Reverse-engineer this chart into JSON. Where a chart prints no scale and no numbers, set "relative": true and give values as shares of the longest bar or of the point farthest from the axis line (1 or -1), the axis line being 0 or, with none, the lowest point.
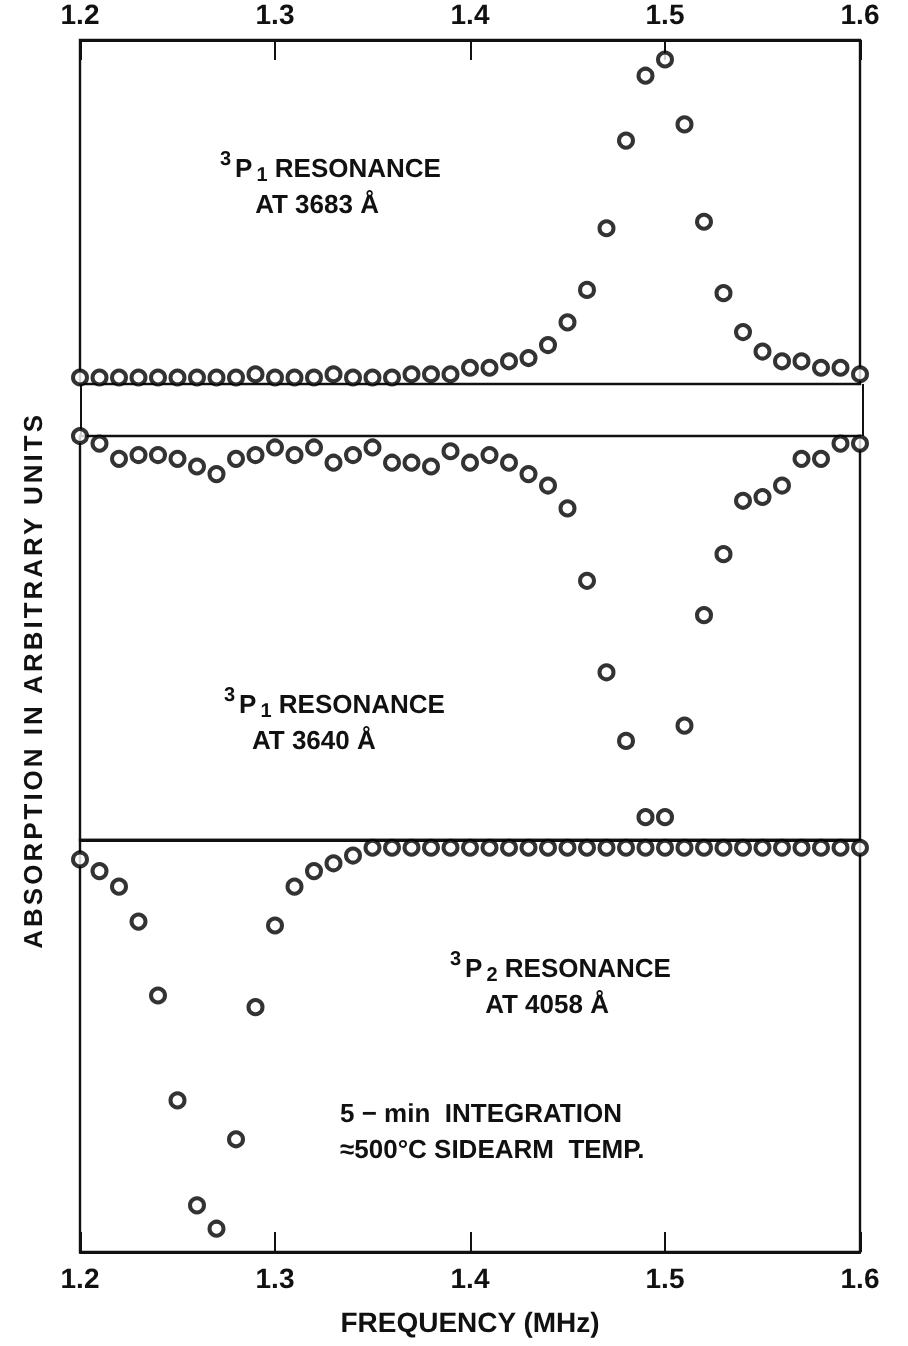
{
  "chart_data": [
    {
      "type": "scatter",
      "relative": true,
      "marker": "circle",
      "grid": false,
      "tick_labels": "x",
      "xlim": [
        1.2,
        1.6
      ],
      "xticks": [
        1.2,
        1.3,
        1.4,
        1.5,
        1.6
      ],
      "annotations": [
        "$^{3}$P$_{1}$ RESONANCE\n     AT 3683 Å"
      ],
      "x": [
        1.2,
        1.21,
        1.22,
        1.23,
        1.24,
        1.25,
        1.26,
        1.27,
        1.28,
        1.29,
        1.3,
        1.31,
        1.32,
        1.33,
        1.34,
        1.35,
        1.36,
        1.37,
        1.38,
        1.39,
        1.4,
        1.41,
        1.42,
        1.43,
        1.44,
        1.45,
        1.46,
        1.47,
        1.48,
        1.49,
        1.5,
        1.51,
        1.52,
        1.53,
        1.54,
        1.55,
        1.56,
        1.57,
        1.58,
        1.59,
        1.6
      ],
      "series": [
        {
          "color": "#000000",
          "values": [
            0.02,
            0.02,
            0.02,
            0.02,
            0.02,
            0.02,
            0.02,
            0.02,
            0.02,
            0.03,
            0.02,
            0.02,
            0.02,
            0.03,
            0.02,
            0.02,
            0.02,
            0.03,
            0.03,
            0.03,
            0.05,
            0.05,
            0.07,
            0.08,
            0.12,
            0.19,
            0.29,
            0.48,
            0.75,
            0.95,
            1.0,
            0.8,
            0.5,
            0.28,
            0.16,
            0.1,
            0.07,
            0.07,
            0.05,
            0.05,
            0.03
          ]
        }
      ]
    },
    {
      "type": "scatter",
      "relative": true,
      "marker": "circle",
      "grid": false,
      "tick_labels": false,
      "xlim": [
        1.2,
        1.6
      ],
      "ylabel": "ABSORPTION IN ARBITRARY UNITS",
      "annotations": [
        "$^{3}$P$_{1}$ RESONANCE\n    AT 3640 Å"
      ],
      "x": [
        1.2,
        1.21,
        1.22,
        1.23,
        1.24,
        1.25,
        1.26,
        1.27,
        1.28,
        1.29,
        1.3,
        1.31,
        1.32,
        1.33,
        1.34,
        1.35,
        1.36,
        1.37,
        1.38,
        1.39,
        1.4,
        1.41,
        1.42,
        1.43,
        1.44,
        1.45,
        1.46,
        1.47,
        1.48,
        1.49,
        1.5,
        1.51,
        1.52,
        1.53,
        1.54,
        1.55,
        1.56,
        1.57,
        1.58,
        1.59,
        1.6
      ],
      "series": [
        {
          "color": "#000000",
          "values": [
            0.0,
            -0.02,
            -0.06,
            -0.05,
            -0.05,
            -0.06,
            -0.08,
            -0.1,
            -0.06,
            -0.05,
            -0.03,
            -0.05,
            -0.03,
            -0.07,
            -0.05,
            -0.03,
            -0.07,
            -0.07,
            -0.08,
            -0.04,
            -0.07,
            -0.05,
            -0.07,
            -0.1,
            -0.13,
            -0.19,
            -0.38,
            -0.62,
            -0.8,
            -1.0,
            -1.0,
            -0.76,
            -0.47,
            -0.31,
            -0.17,
            -0.16,
            -0.13,
            -0.06,
            -0.06,
            -0.02,
            -0.02
          ]
        }
      ]
    },
    {
      "type": "scatter",
      "relative": true,
      "marker": "circle",
      "grid": false,
      "tick_labels": "x",
      "xlim": [
        1.2,
        1.6
      ],
      "xticks": [
        1.2,
        1.3,
        1.4,
        1.5,
        1.6
      ],
      "xlabel": "FREQUENCY (MHz)",
      "annotations": [
        "$^{3}$P$_{2}$ RESONANCE\n     AT 4058 Å",
        "5 − min  INTEGRATION\n≈500°C SIDEARM  TEMP."
      ],
      "x": [
        1.2,
        1.21,
        1.22,
        1.23,
        1.24,
        1.25,
        1.26,
        1.27,
        1.28,
        1.29,
        1.3,
        1.31,
        1.32,
        1.33,
        1.34,
        1.35,
        1.36,
        1.37,
        1.38,
        1.39,
        1.4,
        1.41,
        1.42,
        1.43,
        1.44,
        1.45,
        1.46,
        1.47,
        1.48,
        1.49,
        1.5,
        1.51,
        1.52,
        1.53,
        1.54,
        1.55,
        1.56,
        1.57,
        1.58,
        1.59,
        1.6
      ],
      "series": [
        {
          "color": "#000000",
          "values": [
            -0.05,
            -0.08,
            -0.12,
            -0.21,
            -0.4,
            -0.67,
            -0.94,
            -1.0,
            -0.77,
            -0.43,
            -0.22,
            -0.12,
            -0.08,
            -0.06,
            -0.04,
            -0.02,
            -0.02,
            -0.02,
            -0.02,
            -0.02,
            -0.02,
            -0.02,
            -0.02,
            -0.02,
            -0.02,
            -0.02,
            -0.02,
            -0.02,
            -0.02,
            -0.02,
            -0.02,
            -0.02,
            -0.02,
            -0.02,
            -0.02,
            -0.02,
            -0.02,
            -0.02,
            -0.02,
            -0.02,
            -0.02
          ]
        }
      ]
    }
  ]
}
